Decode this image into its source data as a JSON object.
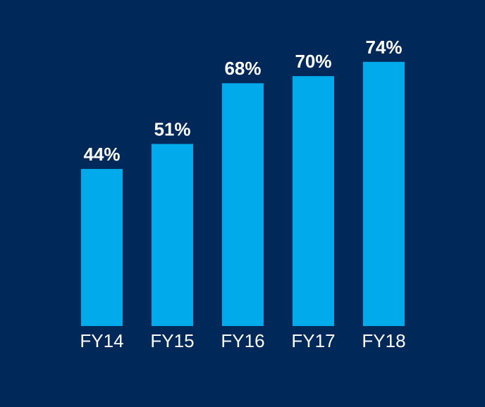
{
  "colors": {
    "background": "#002859",
    "bar": "#00AAEB",
    "text": "#FFFFFF"
  },
  "chart_data": {
    "type": "bar",
    "title": "",
    "xlabel": "",
    "ylabel": "",
    "categories": [
      "FY14",
      "FY15",
      "FY16",
      "FY17",
      "FY18"
    ],
    "values": [
      44,
      51,
      68,
      70,
      74
    ],
    "data_labels": [
      "44%",
      "51%",
      "68%",
      "70%",
      "74%"
    ],
    "ylim": [
      0,
      100
    ],
    "grid": false,
    "legend": "none"
  }
}
